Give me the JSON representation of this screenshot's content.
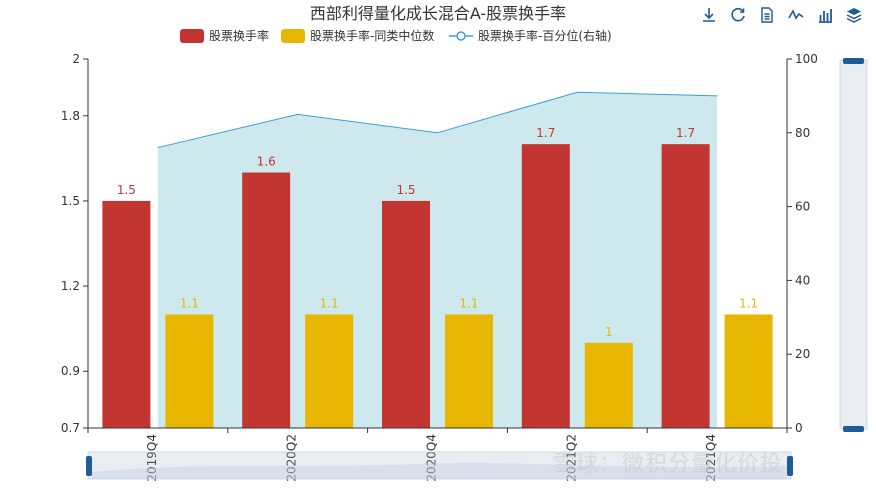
{
  "chart_data": {
    "type": "bar",
    "title": "西部利得量化成长混合A-股票换手率",
    "categories": [
      "2019Q4",
      "2020Q2",
      "2020Q4",
      "2021Q2",
      "2021Q4"
    ],
    "x_tick_labels": [
      "2019Q4",
      "2020Q2",
      "2020Q4",
      "2021Q2",
      "2021Q4"
    ],
    "series": [
      {
        "name": "股票换手率",
        "kind": "bar",
        "axis": "left",
        "color": "#c23531",
        "values": [
          1.5,
          1.6,
          1.5,
          1.7,
          1.7
        ],
        "labels": [
          "1.5",
          "1.6",
          "1.5",
          "1.7",
          "1.7"
        ]
      },
      {
        "name": "股票换手率-同类中位数",
        "kind": "bar",
        "axis": "left",
        "color": "#e6b600",
        "values": [
          1.1,
          1.1,
          1.1,
          1.0,
          1.1
        ],
        "labels": [
          "1.1",
          "1.1",
          "1.1",
          "1",
          "1.1"
        ]
      },
      {
        "name": "股票换手率-百分位(右轴)",
        "kind": "area-line",
        "axis": "right",
        "color": "#3ba0d8",
        "fill": "#cde9ee",
        "values": [
          76,
          85,
          80,
          91,
          90
        ]
      }
    ],
    "y_left": {
      "min": 0.7,
      "max": 2,
      "ticks": [
        0.7,
        0.9,
        1.2,
        1.5,
        1.8,
        2
      ],
      "tick_labels": [
        "0.7",
        "0.9",
        "1.2",
        "1.5",
        "1.8",
        "2"
      ]
    },
    "y_right": {
      "min": 0,
      "max": 100,
      "ticks": [
        0,
        20,
        40,
        60,
        80,
        100
      ],
      "tick_labels": [
        "0",
        "20",
        "40",
        "60",
        "80",
        "100"
      ]
    },
    "grid": true,
    "legend_position": "top-center",
    "data_zoom": {
      "horizontal": true,
      "vertical_right": true
    }
  },
  "toolbar": {
    "icons": [
      "download-icon",
      "refresh-icon",
      "data-view-icon",
      "line-chart-icon",
      "bar-chart-icon",
      "stack-icon"
    ]
  },
  "watermark": "雪球：微积分量化价投"
}
